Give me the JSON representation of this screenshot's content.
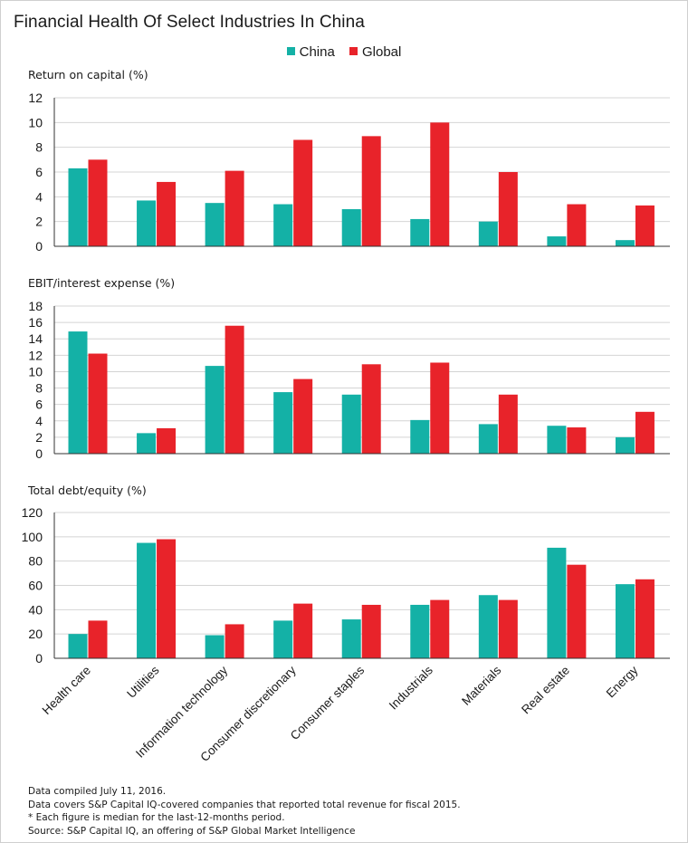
{
  "title": "Financial Health Of Select Industries In China",
  "legend": [
    {
      "label": "China",
      "color": "#14b1a6"
    },
    {
      "label": "Global",
      "color": "#e8232a"
    }
  ],
  "notes": [
    "Data compiled July 11, 2016.",
    "Data covers S&P Capital IQ-covered companies that reported total revenue for fiscal 2015.",
    "* Each figure is median for the last-12-months period.",
    "Source: S&P Capital IQ, an offering of S&P Global Market Intelligence"
  ],
  "chart_data": [
    {
      "type": "bar",
      "title": "Return on capital (%)",
      "categories": [
        "Health care",
        "Utilities",
        "Information technology",
        "Consumer discretionary",
        "Consumer staples",
        "Industrials",
        "Materials",
        "Real estate",
        "Energy"
      ],
      "series": [
        {
          "name": "China",
          "color": "#14b1a6",
          "values": [
            6.3,
            3.7,
            3.5,
            3.4,
            3.0,
            2.2,
            2.0,
            0.8,
            0.5
          ]
        },
        {
          "name": "Global",
          "color": "#e8232a",
          "values": [
            7.0,
            5.2,
            6.1,
            8.6,
            8.9,
            10.0,
            6.0,
            3.4,
            3.3
          ]
        }
      ],
      "ylim": [
        0,
        12
      ],
      "yticks": [
        0,
        2,
        4,
        6,
        8,
        10,
        12
      ],
      "grid": true
    },
    {
      "type": "bar",
      "title": "EBIT/interest expense (%)",
      "categories": [
        "Health care",
        "Utilities",
        "Information technology",
        "Consumer discretionary",
        "Consumer staples",
        "Industrials",
        "Materials",
        "Real estate",
        "Energy"
      ],
      "series": [
        {
          "name": "China",
          "color": "#14b1a6",
          "values": [
            14.9,
            2.5,
            10.7,
            7.5,
            7.2,
            4.1,
            3.6,
            3.4,
            2.0
          ]
        },
        {
          "name": "Global",
          "color": "#e8232a",
          "values": [
            12.2,
            3.1,
            15.6,
            9.1,
            10.9,
            11.1,
            7.2,
            3.2,
            5.1
          ]
        }
      ],
      "ylim": [
        0,
        18
      ],
      "yticks": [
        0,
        2,
        4,
        6,
        8,
        10,
        12,
        14,
        16,
        18
      ],
      "grid": true
    },
    {
      "type": "bar",
      "title": "Total debt/equity (%)",
      "categories": [
        "Health care",
        "Utilities",
        "Information technology",
        "Consumer discretionary",
        "Consumer staples",
        "Industrials",
        "Materials",
        "Real estate",
        "Energy"
      ],
      "series": [
        {
          "name": "China",
          "color": "#14b1a6",
          "values": [
            20,
            95,
            19,
            31,
            32,
            44,
            52,
            91,
            61
          ]
        },
        {
          "name": "Global",
          "color": "#e8232a",
          "values": [
            31,
            98,
            28,
            45,
            44,
            48,
            48,
            77,
            65
          ]
        }
      ],
      "ylim": [
        0,
        120
      ],
      "yticks": [
        0,
        20,
        40,
        60,
        80,
        100,
        120
      ],
      "grid": true
    }
  ]
}
